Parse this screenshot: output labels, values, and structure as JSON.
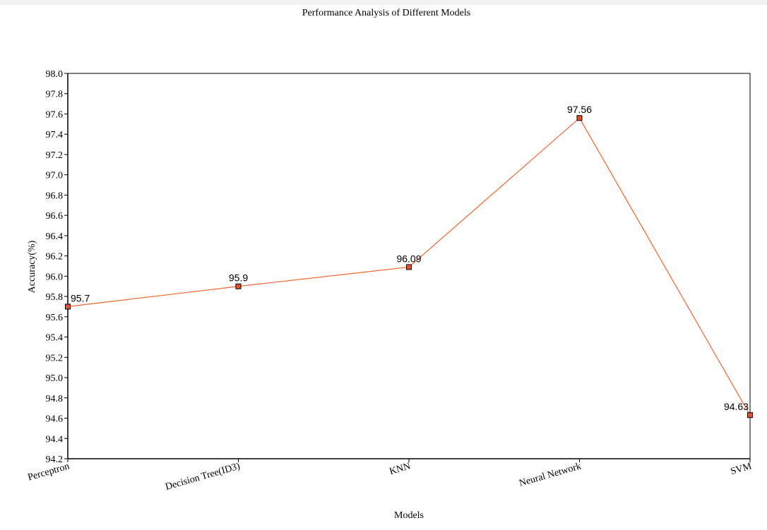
{
  "chart_data": {
    "type": "line",
    "title": "Performance Analysis of Different Models",
    "xlabel": "Models",
    "ylabel": "Accuracy(%)",
    "categories": [
      "Perceptron",
      "Decision Tree(ID3)",
      "KNN",
      "Neural Network",
      "SVM"
    ],
    "values": [
      95.7,
      95.9,
      96.09,
      97.56,
      94.63
    ],
    "data_labels": [
      "95.7",
      "95.9",
      "96.09",
      "97.56",
      "94.63"
    ],
    "y_ticks": [
      "98.0",
      "97.8",
      "97.6",
      "97.4",
      "97.2",
      "97.0",
      "96.8",
      "96.6",
      "96.4",
      "96.2",
      "96.0",
      "95.8",
      "95.6",
      "95.4",
      "95.2",
      "95.0",
      "94.8",
      "94.6",
      "94.4",
      "94.2"
    ],
    "ylim": [
      94.2,
      98.0
    ],
    "grid": false,
    "legend": "none",
    "colors": {
      "line": "#f26430",
      "marker_fill": "#e8502a",
      "marker_stroke": "#000000",
      "axis": "#000000"
    }
  }
}
